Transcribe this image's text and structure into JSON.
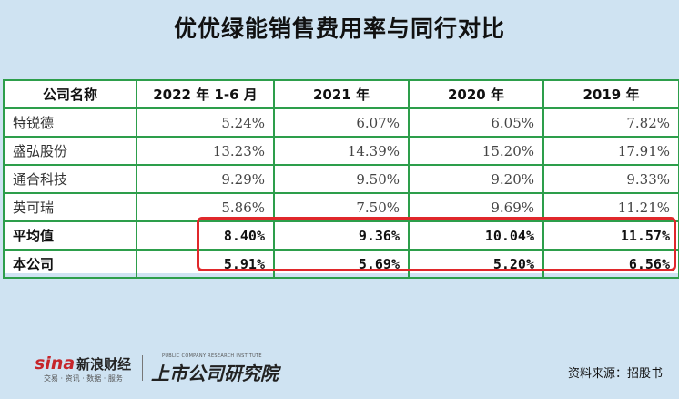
{
  "title": "优优绿能销售费用率与同行对比",
  "table": {
    "headers": [
      "公司名称",
      "2022 年 1-6 月",
      "2021 年",
      "2020 年",
      "2019 年"
    ],
    "rows": [
      {
        "name": "特锐德",
        "values": [
          "5.24%",
          "6.07%",
          "6.05%",
          "7.82%"
        ]
      },
      {
        "name": "盛弘股份",
        "values": [
          "13.23%",
          "14.39%",
          "15.20%",
          "17.91%"
        ]
      },
      {
        "name": "通合科技",
        "values": [
          "9.29%",
          "9.50%",
          "9.20%",
          "9.33%"
        ]
      },
      {
        "name": "英可瑞",
        "values": [
          "5.86%",
          "7.50%",
          "9.69%",
          "11.21%"
        ]
      },
      {
        "name": "平均值",
        "values": [
          "8.40%",
          "9.36%",
          "10.04%",
          "11.57%"
        ]
      },
      {
        "name": "本公司",
        "values": [
          "5.91%",
          "5.69%",
          "5.20%",
          "6.56%"
        ]
      }
    ]
  },
  "footer": {
    "sina_logo": "sina",
    "sina_cn": "新浪财经",
    "sina_sub": "交易 · 资讯 · 数据 · 服务",
    "institute_en": "PUBLIC COMPANY RESEARCH INSTITUTE",
    "institute_cn": "上市公司研究院",
    "source": "资料来源：招股书"
  },
  "colors": {
    "background": "#cfe3f2",
    "table_border": "#2d9e4b",
    "highlight_border": "#e0282b"
  }
}
